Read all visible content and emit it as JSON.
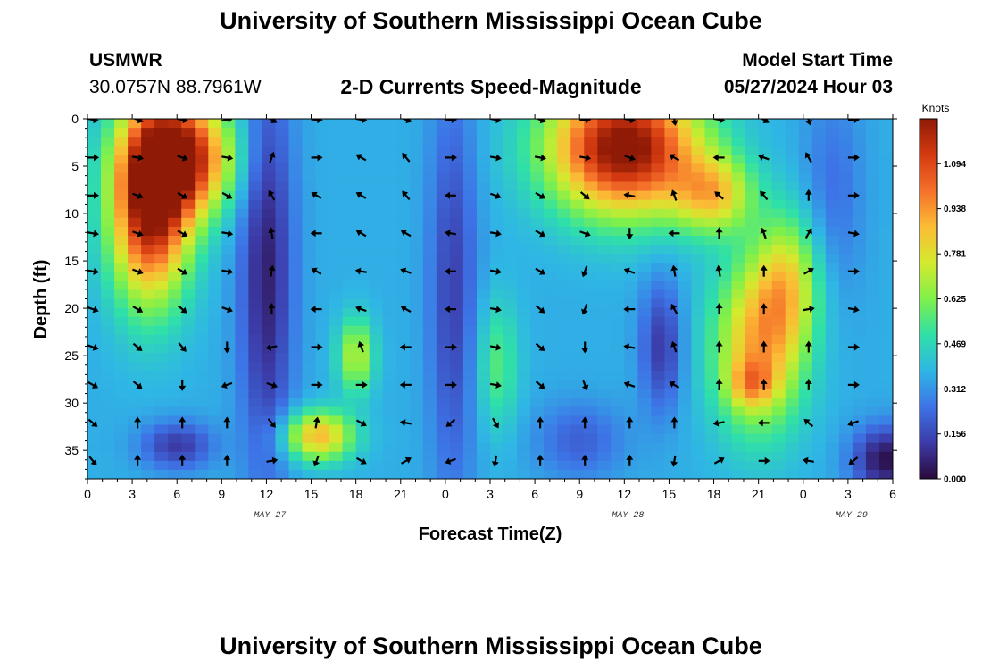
{
  "header": {
    "title": "University of Southern Mississippi Ocean Cube",
    "station": "USMWR",
    "coordinates": "30.0757N  88.7961W",
    "subtitle": "2-D Currents Speed-Magnitude",
    "model_start_label": "Model Start Time",
    "model_start_value": "05/27/2024 Hour 03",
    "footer_title": "University of Southern Mississippi Ocean Cube"
  },
  "colors": {
    "scale": [
      "#2a0a3c",
      "#3c3ba8",
      "#3d73e6",
      "#2fb6e5",
      "#2fe0a8",
      "#7ff04a",
      "#d4ea2e",
      "#fbbc35",
      "#f5702a",
      "#d43a10",
      "#8f1a06"
    ]
  },
  "chart_data": {
    "type": "heatmap",
    "title": "2-D Currents Speed-Magnitude",
    "xlabel": "Forecast Time(Z)",
    "ylabel": "Depth (ft)",
    "x_ticks": [
      "0",
      "3",
      "6",
      "9",
      "12",
      "15",
      "18",
      "21",
      "0",
      "3",
      "6",
      "9",
      "12",
      "15",
      "18",
      "21",
      "0",
      "3",
      "6"
    ],
    "x_range_hours": [
      0,
      54
    ],
    "date_labels": [
      {
        "text": "MAY 27",
        "hour": 12
      },
      {
        "text": "MAY 28",
        "hour": 36
      },
      {
        "text": "MAY 29",
        "hour": 51
      }
    ],
    "y_ticks": [
      "0",
      "5",
      "10",
      "15",
      "20",
      "25",
      "30",
      "35"
    ],
    "y_range_ft": [
      0,
      38
    ],
    "y_inverted": true,
    "colorbar": {
      "unit": "Knots",
      "ticks": [
        "0.000",
        "0.156",
        "0.312",
        "0.469",
        "0.625",
        "0.781",
        "0.938",
        "1.094"
      ],
      "range": [
        0,
        1.25
      ]
    },
    "arrow_hours": [
      0,
      3,
      6,
      9,
      12,
      15,
      18,
      21,
      24,
      27,
      30,
      33,
      36,
      39,
      42,
      45,
      48,
      51
    ],
    "arrow_depths_ft": [
      0,
      4,
      8,
      12,
      16,
      20,
      24,
      28,
      32,
      36
    ],
    "arrow_directions_deg": [
      [
        100,
        110,
        100,
        80,
        120,
        95,
        100,
        110,
        90,
        100,
        110,
        90,
        100,
        170,
        100,
        120,
        160,
        90
      ],
      [
        90,
        100,
        110,
        100,
        20,
        90,
        300,
        320,
        90,
        100,
        100,
        100,
        110,
        300,
        270,
        290,
        330,
        90
      ],
      [
        90,
        110,
        120,
        120,
        330,
        300,
        300,
        320,
        270,
        110,
        120,
        130,
        280,
        340,
        310,
        320,
        0,
        90
      ],
      [
        100,
        110,
        120,
        100,
        350,
        270,
        300,
        300,
        280,
        100,
        120,
        110,
        180,
        270,
        0,
        340,
        30,
        100
      ],
      [
        100,
        110,
        120,
        100,
        10,
        300,
        280,
        290,
        270,
        100,
        120,
        200,
        290,
        350,
        350,
        0,
        60,
        90
      ],
      [
        110,
        120,
        130,
        110,
        0,
        270,
        290,
        300,
        270,
        100,
        130,
        200,
        270,
        330,
        0,
        0,
        80,
        100
      ],
      [
        110,
        130,
        140,
        180,
        260,
        90,
        340,
        270,
        90,
        100,
        130,
        180,
        280,
        340,
        0,
        0,
        0,
        90
      ],
      [
        120,
        130,
        180,
        250,
        110,
        90,
        90,
        270,
        90,
        100,
        130,
        160,
        290,
        300,
        0,
        0,
        0,
        90
      ],
      [
        130,
        0,
        0,
        0,
        140,
        10,
        120,
        280,
        230,
        150,
        0,
        0,
        0,
        0,
        260,
        270,
        310,
        250
      ],
      [
        140,
        0,
        0,
        0,
        80,
        200,
        120,
        60,
        250,
        190,
        0,
        0,
        0,
        190,
        60,
        90,
        280,
        230
      ]
    ]
  }
}
